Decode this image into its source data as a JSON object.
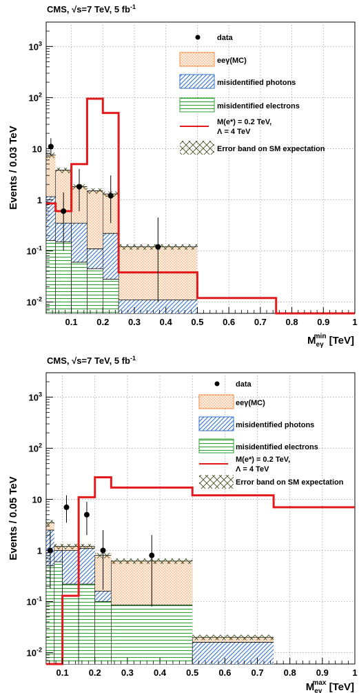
{
  "panels": [
    {
      "header": {
        "prefix": "CMS, ",
        "sqrt": "√",
        "s_eq": "s=7 TeV, 5 fb",
        "sup": "-1"
      },
      "ylabel": "Events / 0.03 TeV",
      "xlabel": {
        "main": "M",
        "sub": "eγ",
        "sup": "min",
        "unit": " [TeV]"
      },
      "legend": {
        "data": "data",
        "eeg": "eeγ(MC)",
        "photons": "misidentified photons",
        "electrons": "misidentified electrons",
        "signal_line1": "M(e*) = 0.2 TeV,",
        "signal_line2": "Λ = 4 TeV",
        "error": "Error band on SM expectation"
      }
    },
    {
      "header": {
        "prefix": "CMS, ",
        "sqrt": "√",
        "s_eq": "s=7 TeV, 5 fb",
        "sup": "-1"
      },
      "ylabel": "Events / 0.05 TeV",
      "xlabel": {
        "main": "M",
        "sub": "eγ",
        "sup": "max",
        "unit": " [TeV]"
      },
      "legend": {
        "data": "data",
        "eeg": "eeγ(MC)",
        "photons": "misidentified photons",
        "electrons": "misidentified electrons",
        "signal_line1": "M(e*) = 0.2 TeV,",
        "signal_line2": "Λ = 4 TeV",
        "error": "Error band on SM expectation"
      }
    }
  ],
  "chart_data": [
    {
      "type": "stacked histogram",
      "xlim": [
        0.02,
        1.0
      ],
      "ylim": [
        0.006,
        3000
      ],
      "yscale": "log",
      "grid": true,
      "legend_position": "top-right",
      "xticks": [
        0.1,
        0.2,
        0.3,
        0.4,
        0.5,
        0.6,
        0.7,
        0.8,
        0.9,
        1
      ],
      "xtick_labels": [
        "0.1",
        "0.2",
        "0.3",
        "0.4",
        "0.5",
        "0.6",
        "0.7",
        "0.8",
        "0.9",
        "1"
      ],
      "ytick_values": [
        0.01,
        0.1,
        1,
        10,
        100,
        1000
      ],
      "ytick_labels": [
        {
          "base": "10",
          "sup": "-2"
        },
        {
          "base": "10",
          "sup": "-1"
        },
        {
          "base": "1",
          "sup": ""
        },
        {
          "base": "10",
          "sup": ""
        },
        {
          "base": "10",
          "sup": "2"
        },
        {
          "base": "10",
          "sup": "3"
        }
      ],
      "bin_edges": [
        0.02,
        0.05,
        0.1,
        0.15,
        0.2,
        0.25,
        0.5,
        0.75,
        1.0
      ],
      "misidentified_electrons": [
        0.16,
        0.15,
        0.06,
        0.045,
        0.028,
        0.006,
        0.006,
        0.006
      ],
      "misidentified_photons": [
        1.15,
        0.35,
        0.35,
        0.11,
        0.22,
        0.011,
        0.006,
        0.006
      ],
      "eegamma_mc_total": [
        7.5,
        3.8,
        1.8,
        1.5,
        1.3,
        0.12,
        0.006,
        0.006
      ],
      "signal": [
        0.85,
        0.6,
        5,
        95,
        50,
        0.038,
        0.012,
        0.006
      ],
      "data_points": [
        {
          "x": 0.035,
          "y": 11,
          "err_lo": 7.5,
          "err_hi": 16
        },
        {
          "x": 0.075,
          "y": 0.6,
          "err_lo": 0.1,
          "err_hi": 1.4
        },
        {
          "x": 0.125,
          "y": 1.8,
          "err_lo": 0.6,
          "err_hi": 4
        },
        {
          "x": 0.225,
          "y": 1.2,
          "err_lo": 0.35,
          "err_hi": 3
        },
        {
          "x": 0.375,
          "y": 0.12,
          "err_lo": 0.01,
          "err_hi": 0.45
        }
      ]
    },
    {
      "type": "stacked histogram",
      "xlim": [
        0.05,
        1.0
      ],
      "ylim": [
        0.006,
        3000
      ],
      "yscale": "log",
      "grid": true,
      "legend_position": "top-right",
      "xticks": [
        0.1,
        0.2,
        0.3,
        0.4,
        0.5,
        0.6,
        0.7,
        0.8,
        0.9,
        1
      ],
      "xtick_labels": [
        "0.1",
        "0.2",
        "0.3",
        "0.4",
        "0.5",
        "0.6",
        "0.7",
        "0.8",
        "0.9",
        "1"
      ],
      "ytick_values": [
        0.01,
        0.1,
        1,
        10,
        100,
        1000
      ],
      "ytick_labels": [
        {
          "base": "10",
          "sup": "-2"
        },
        {
          "base": "10",
          "sup": "-1"
        },
        {
          "base": "1",
          "sup": ""
        },
        {
          "base": "10",
          "sup": ""
        },
        {
          "base": "10",
          "sup": "2"
        },
        {
          "base": "10",
          "sup": "3"
        }
      ],
      "bin_edges": [
        0.05,
        0.075,
        0.1,
        0.15,
        0.2,
        0.25,
        0.5,
        0.75,
        1.0
      ],
      "misidentified_electrons": [
        0.5,
        0.6,
        0.22,
        0.22,
        0.1,
        0.085,
        0.006,
        0.006
      ],
      "misidentified_photons": [
        2.5,
        1.0,
        1.0,
        1.1,
        0.16,
        0.085,
        0.016,
        0.006
      ],
      "eegamma_mc_total": [
        3.5,
        1.2,
        1.2,
        1.2,
        0.8,
        0.62,
        0.02,
        0.006
      ],
      "signal": [
        0.006,
        0.006,
        0.13,
        11,
        27,
        17,
        12,
        7
      ],
      "data_points": [
        {
          "x": 0.0625,
          "y": 1.0,
          "err_lo": 0.18,
          "err_hi": 2.5
        },
        {
          "x": 0.1125,
          "y": 7,
          "err_lo": 3.5,
          "err_hi": 12
        },
        {
          "x": 0.175,
          "y": 5,
          "err_lo": 2,
          "err_hi": 9
        },
        {
          "x": 0.225,
          "y": 1.0,
          "err_lo": 0.17,
          "err_hi": 2.5
        },
        {
          "x": 0.375,
          "y": 0.8,
          "err_lo": 0.08,
          "err_hi": 2.0
        }
      ]
    }
  ]
}
